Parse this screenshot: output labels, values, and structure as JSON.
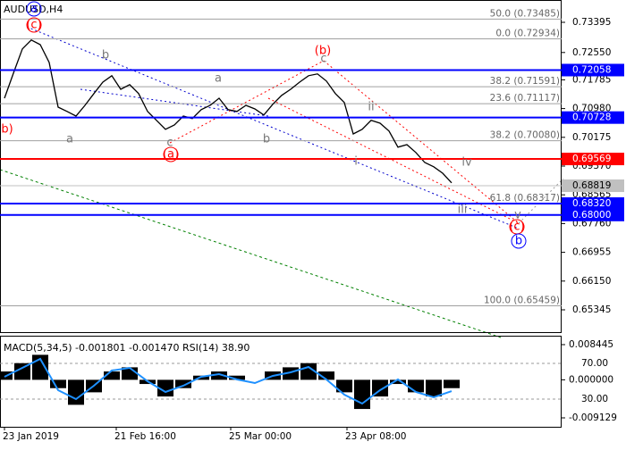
{
  "chart_data": {
    "type": "line",
    "title": "AUDUSD,H4",
    "color": "#000000",
    "values": [
      0.7127,
      0.7197,
      0.7265,
      0.729,
      0.7277,
      0.7227,
      0.7102,
      0.709,
      0.7077,
      0.7107,
      0.714,
      0.7172,
      0.719,
      0.7152,
      0.7165,
      0.714,
      0.709,
      0.7065,
      0.704,
      0.7052,
      0.7077,
      0.707,
      0.7095,
      0.7107,
      0.7127,
      0.7095,
      0.709,
      0.7107,
      0.7097,
      0.708,
      0.711,
      0.7135,
      0.7152,
      0.7172,
      0.719,
      0.7195,
      0.7175,
      0.714,
      0.7115,
      0.7027,
      0.704,
      0.7065,
      0.7057,
      0.7035,
      0.699,
      0.6997,
      0.6975,
      0.6947,
      0.6935,
      0.6917,
      0.689
    ],
    "ylim": [
      0.6472,
      0.7402
    ],
    "yticks": [
      {
        "value": 0.73395,
        "label": "0.73395"
      },
      {
        "value": 0.7255,
        "label": "0.72550"
      },
      {
        "value": 0.71785,
        "label": "0.71785"
      },
      {
        "value": 0.7098,
        "label": "0.70980"
      },
      {
        "value": 0.70175,
        "label": "0.70175"
      },
      {
        "value": 0.6937,
        "label": "0.69370"
      },
      {
        "value": 0.68565,
        "label": "0.68565"
      },
      {
        "value": 0.6776,
        "label": "0.67760"
      },
      {
        "value": 0.66955,
        "label": "0.66955"
      },
      {
        "value": 0.6615,
        "label": "0.66150"
      },
      {
        "value": 0.65345,
        "label": "0.65345"
      }
    ],
    "x_labels": [
      "23 Jan 2019",
      "21 Feb 16:00",
      "25 Mar 00:00",
      "23 Apr 08:00"
    ],
    "levels": [
      {
        "value": 0.72058,
        "label": "0.72058",
        "color": "#0000ff"
      },
      {
        "value": 0.70728,
        "label": "0.70728",
        "color": "#0000ff"
      },
      {
        "value": 0.69569,
        "label": "0.69569",
        "color": "#ff0000"
      },
      {
        "value": 0.68819,
        "label": "0.68819",
        "color": "#c0c0c0"
      },
      {
        "value": 0.6832,
        "label": "0.68320",
        "color": "#0000ff"
      },
      {
        "value": 0.68,
        "label": "0.68000",
        "color": "#0000ff"
      }
    ],
    "fibs": [
      {
        "value": 0.73485,
        "label": "50.0 (0.73485)"
      },
      {
        "value": 0.72934,
        "label": "0.0 (0.72934)"
      },
      {
        "value": 0.71591,
        "label": "38.2 (0.71591)"
      },
      {
        "value": 0.71117,
        "label": "23.6 (0.71117)"
      },
      {
        "value": 0.7008,
        "label": "38.2 (0.70080)"
      },
      {
        "value": 0.68317,
        "label": "61.8 (0.68317)"
      },
      {
        "value": 0.65459,
        "label": "100.0 (0.65459)"
      }
    ],
    "waves": [
      "a",
      "(c)",
      "b)",
      "b",
      "a",
      "a",
      "c",
      "(a)",
      "b",
      "(b)",
      "c",
      "i",
      "ii",
      "iii",
      "iv",
      "v",
      "(c)",
      "b"
    ],
    "indicator": {
      "title": "MACD(5,34,5) -0.001801 -0.001470 RSI(14) 38.90",
      "macd": [
        0.002,
        0.004,
        0.006,
        -0.002,
        -0.006,
        -0.003,
        0.002,
        0.003,
        -0.001,
        -0.004,
        -0.002,
        0.001,
        0.002,
        0.001,
        0.0,
        0.002,
        0.003,
        0.004,
        0.002,
        -0.003,
        -0.007,
        -0.004,
        -0.001,
        -0.003,
        -0.004,
        -0.002
      ],
      "rsi": [
        55,
        65,
        75,
        40,
        30,
        45,
        62,
        65,
        50,
        38,
        45,
        55,
        58,
        52,
        48,
        56,
        60,
        66,
        52,
        35,
        25,
        40,
        52,
        38,
        32,
        38.9
      ],
      "macd_ylim": [
        -0.01106,
        0.01037
      ],
      "macd_ticks": [
        {
          "value": 0.008445,
          "label": "0.008445"
        },
        {
          "value": 0,
          "label": "0.000000"
        },
        {
          "value": -0.009129,
          "label": "-0.009129"
        }
      ],
      "rsi_ylim": [
        0,
        100
      ],
      "rsi_ticks": [
        {
          "value": 70,
          "label": "70.00"
        },
        {
          "value": 30,
          "label": "30.00"
        }
      ]
    }
  }
}
